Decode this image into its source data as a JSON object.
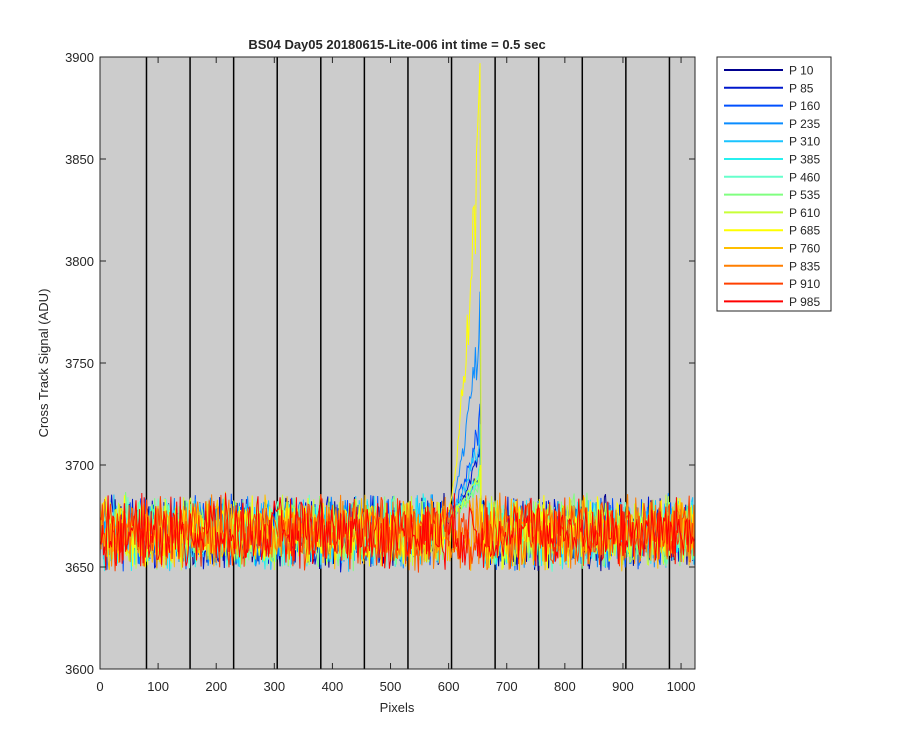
{
  "chart_data": {
    "type": "line",
    "title": "BS04 Day05 20180615-Lite-006 int time = 0.5 sec",
    "xlabel": "Pixels",
    "ylabel": "Cross Track Signal (ADU)",
    "xlim": [
      0,
      1024
    ],
    "ylim": [
      3600,
      3900
    ],
    "xticks": [
      "0",
      "100",
      "200",
      "300",
      "400",
      "500",
      "600",
      "700",
      "800",
      "900",
      "1000"
    ],
    "yticks": [
      "3600",
      "3650",
      "3700",
      "3750",
      "3800",
      "3850",
      "3900"
    ],
    "grid": false,
    "background": "#cccccc",
    "legend_position": "outside-top-right",
    "column_boundaries": [
      80,
      155,
      230,
      305,
      380,
      455,
      530,
      605,
      680,
      755,
      830,
      905,
      980
    ],
    "baseline": 3667,
    "baseline_noise_range": [
      3640,
      3698
    ],
    "series": [
      {
        "name": "P 10",
        "color": "#00008f",
        "spike_peak": 3700
      },
      {
        "name": "P 85",
        "color": "#0018cc",
        "spike_peak": 3710
      },
      {
        "name": "P 160",
        "color": "#0050ff",
        "spike_peak": 3730
      },
      {
        "name": "P 235",
        "color": "#0a8cff",
        "spike_peak": 3785
      },
      {
        "name": "P 310",
        "color": "#1ac4ff",
        "spike_peak": 3720
      },
      {
        "name": "P 385",
        "color": "#27f0ef",
        "spike_peak": 3700
      },
      {
        "name": "P 460",
        "color": "#66ffcc",
        "spike_peak": 3697
      },
      {
        "name": "P 535",
        "color": "#80ff80",
        "spike_peak": 3695
      },
      {
        "name": "P 610",
        "color": "#c8ff37",
        "spike_peak": 3700
      },
      {
        "name": "P 685",
        "color": "#ffff00",
        "spike_peak": 3897
      },
      {
        "name": "P 760",
        "color": "#ffbf00",
        "spike_peak": null
      },
      {
        "name": "P 835",
        "color": "#ff7f00",
        "spike_peak": null
      },
      {
        "name": "P 910",
        "color": "#ff4000",
        "spike_peak": null
      },
      {
        "name": "P 985",
        "color": "#ff0000",
        "spike_peak": null
      }
    ],
    "spike_range": [
      595,
      655
    ]
  }
}
